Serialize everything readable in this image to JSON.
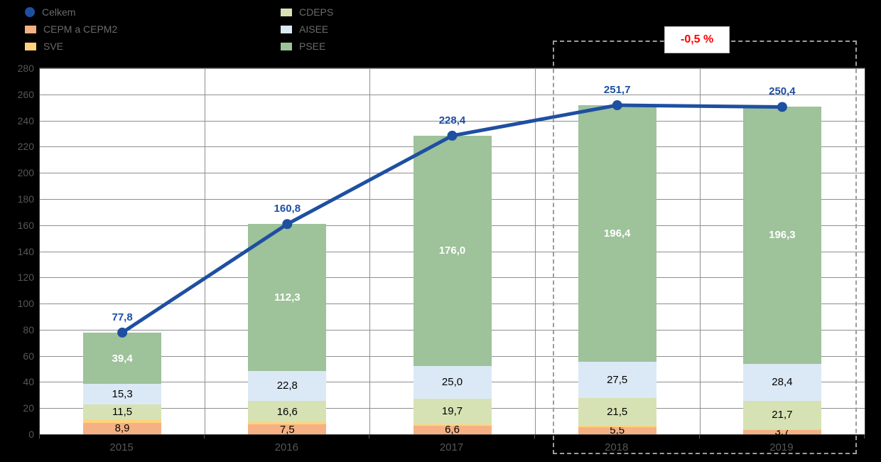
{
  "page": {
    "background": "#000000",
    "plot_background": "#FFFFFF"
  },
  "legend": {
    "columns": [
      {
        "items": [
          {
            "label": "Celkem",
            "marker": "circle",
            "color": "#1E4FA1"
          },
          {
            "label": "CEPM a CEPM2",
            "marker": "square",
            "color": "#F5B183"
          },
          {
            "label": "SVE",
            "marker": "square",
            "color": "#FFD37E"
          }
        ]
      },
      {
        "items": [
          {
            "label": "CDEPS",
            "marker": "square",
            "color": "#D6E2B4"
          },
          {
            "label": "AISEE",
            "marker": "square",
            "color": "#DBE9F6"
          },
          {
            "label": "PSEE",
            "marker": "square",
            "color": "#9EC29A"
          }
        ]
      }
    ]
  },
  "annotation": {
    "text": "-0,5 %",
    "color": "#FF0000"
  },
  "chart_data": {
    "type": "bar",
    "subtype": "stacked-bar-with-total-line",
    "categories": [
      "2015",
      "2016",
      "2017",
      "2018",
      "2019"
    ],
    "ylim": [
      0,
      280
    ],
    "ytick_step": 20,
    "grid": true,
    "legend_position": "top-left",
    "series": [
      {
        "name": "CEPM a CEPM2",
        "color": "#F5B183",
        "label_color": "#000000",
        "values": [
          8.9,
          7.5,
          6.6,
          5.5,
          3.7
        ],
        "labels": [
          "8,9",
          "7,5",
          "6,6",
          "5,5",
          "3,7"
        ]
      },
      {
        "name": "SVE",
        "color": "#FFD37E",
        "label_color": "#000000",
        "estimated": true,
        "values": [
          2.7,
          1.6,
          1.1,
          0.8,
          0.3
        ],
        "labels": [
          "",
          "",
          "",
          "",
          ""
        ]
      },
      {
        "name": "CDEPS",
        "color": "#D6E2B4",
        "label_color": "#000000",
        "values": [
          11.5,
          16.6,
          19.7,
          21.5,
          21.7
        ],
        "labels": [
          "11,5",
          "16,6",
          "19,7",
          "21,5",
          "21,7"
        ]
      },
      {
        "name": "AISEE",
        "color": "#DBE9F6",
        "label_color": "#000000",
        "values": [
          15.3,
          22.8,
          25.0,
          27.5,
          28.4
        ],
        "labels": [
          "15,3",
          "22,8",
          "25,0",
          "27,5",
          "28,4"
        ]
      },
      {
        "name": "PSEE",
        "color": "#9EC29A",
        "label_color": "#FFFFFF",
        "label_bold": true,
        "values": [
          39.4,
          112.3,
          176.0,
          196.4,
          196.3
        ],
        "labels": [
          "39,4",
          "112,3",
          "176,0",
          "196,4",
          "196,3"
        ]
      }
    ],
    "line": {
      "name": "Celkem",
      "color": "#1E4FA1",
      "values": [
        77.8,
        160.8,
        228.4,
        251.7,
        250.4
      ],
      "labels": [
        "77,8",
        "160,8",
        "228,4",
        "251,7",
        "250,4"
      ]
    },
    "highlight": {
      "categories": [
        "2018",
        "2019"
      ],
      "style": "dashed-box",
      "annotation": "-0,5 %"
    }
  }
}
